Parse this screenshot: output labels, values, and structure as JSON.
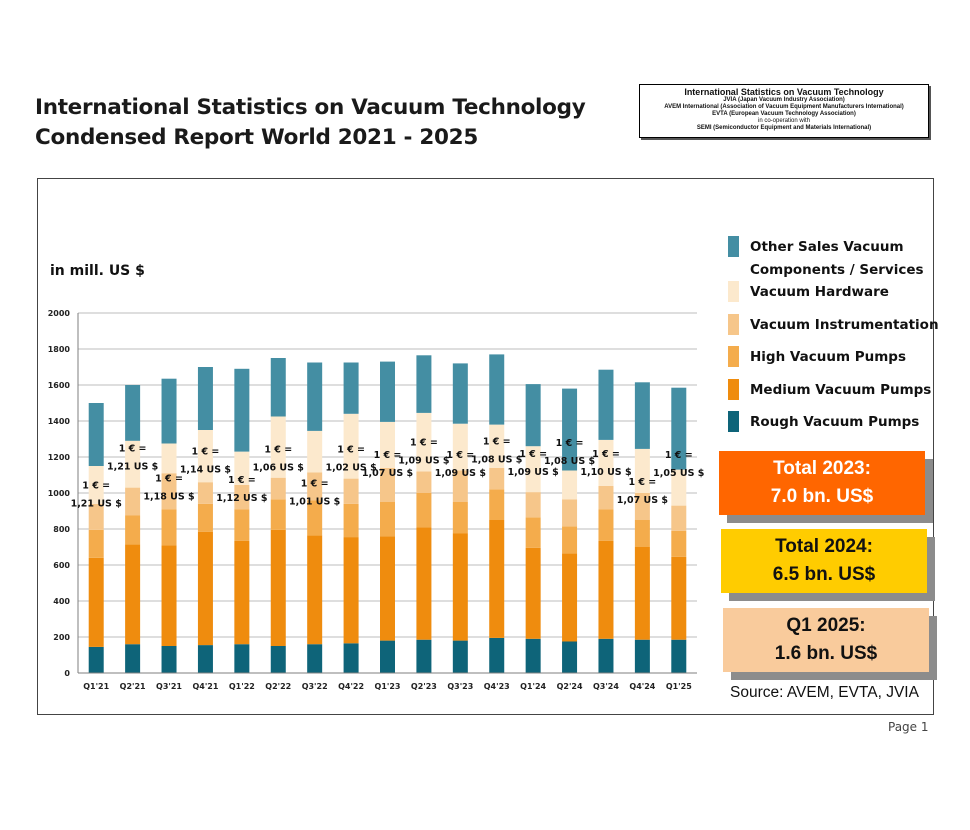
{
  "title_lines": [
    "International Statistics on Vacuum Technology",
    "Condensed Report World 2021 - 2025"
  ],
  "org_box": {
    "head": "International Statistics on Vacuum Technology",
    "lines": [
      "JVIA (Japan Vacuum Industry Association)",
      "AVEM International (Association of Vacuum Equipment Manufacturers International)",
      "EVTA (European Vacuum Technology Association)",
      "in co-operation with",
      "SEMI (Semiconductor Equipment and Materials International)"
    ]
  },
  "totals": [
    {
      "label": "Total 2023:",
      "value": "7.0 bn. US$",
      "color": "#ff6600",
      "text_color": "#ffffff"
    },
    {
      "label": "Total 2024:",
      "value": "6.5 bn. US$",
      "color": "#ffcc00",
      "text_color": "#111111"
    },
    {
      "label": "Q1 2025:",
      "value": "1.6 bn. US$",
      "color": "#f9cb9c",
      "text_color": "#111111"
    }
  ],
  "source": "Source: AVEM, EVTA, JVIA",
  "page_label": "Page 1",
  "chart_data": {
    "type": "bar",
    "stacked": true,
    "title": "",
    "ylabel": "in mill. US $",
    "xlabel": "",
    "ylim": [
      0,
      2000
    ],
    "yticks": [
      0,
      200,
      400,
      600,
      800,
      1000,
      1200,
      1400,
      1600,
      1800,
      2000
    ],
    "grid": true,
    "categories": [
      "Q1'21",
      "Q2'21",
      "Q3'21",
      "Q4'21",
      "Q1'22",
      "Q2'22",
      "Q3'22",
      "Q4'22",
      "Q1'23",
      "Q2'23",
      "Q3'23",
      "Q4'23",
      "Q1'24",
      "Q2'24",
      "Q3'24",
      "Q4'24",
      "Q1'25"
    ],
    "series": [
      {
        "name": "Rough Vacuum Pumps",
        "color": "#0e6479",
        "values": [
          145,
          160,
          150,
          155,
          160,
          150,
          160,
          165,
          180,
          185,
          180,
          195,
          190,
          175,
          190,
          185,
          185
        ]
      },
      {
        "name": "Medium Vacuum Pumps",
        "color": "#ef8c0e",
        "values": [
          495,
          555,
          560,
          630,
          575,
          645,
          605,
          590,
          580,
          625,
          595,
          655,
          505,
          490,
          545,
          515,
          460
        ]
      },
      {
        "name": "High Vacuum Pumps",
        "color": "#f4ac4c",
        "values": [
          155,
          160,
          200,
          155,
          175,
          170,
          195,
          185,
          190,
          190,
          175,
          170,
          170,
          150,
          175,
          150,
          145
        ]
      },
      {
        "name": "Vacuum Instrumentation",
        "color": "#f6c68a",
        "values": [
          145,
          155,
          200,
          120,
          135,
          120,
          155,
          140,
          190,
          120,
          175,
          120,
          140,
          150,
          130,
          150,
          140
        ]
      },
      {
        "name": "Vacuum Hardware",
        "color": "#fce9cd",
        "values": [
          210,
          260,
          165,
          290,
          185,
          340,
          230,
          360,
          255,
          325,
          260,
          240,
          255,
          160,
          255,
          245,
          200
        ]
      },
      {
        "name": "Other Sales Vacuum Components / Services",
        "legend_lines": [
          "Other Sales Vacuum",
          "Components / Services"
        ],
        "color": "#448ea3",
        "values": [
          350,
          310,
          360,
          350,
          460,
          325,
          380,
          285,
          335,
          320,
          335,
          390,
          345,
          455,
          390,
          370,
          455
        ]
      }
    ],
    "totals_per_quarter": [
      1500,
      1600,
      1635,
      1700,
      1690,
      1750,
      1725,
      1725,
      1730,
      1765,
      1720,
      1770,
      1605,
      1580,
      1685,
      1615,
      1585
    ],
    "exchange_rates": [
      {
        "top": "1 € =",
        "bottom": "1,21 US $"
      },
      {
        "top": "1 € =",
        "bottom": "1,21 US $"
      },
      {
        "top": "1 € =",
        "bottom": "1,18 US $"
      },
      {
        "top": "1 € =",
        "bottom": "1,14 US $"
      },
      {
        "top": "1 € =",
        "bottom": "1,12 US $"
      },
      {
        "top": "1 € =",
        "bottom": "1,06 US $"
      },
      {
        "top": "1 € =",
        "bottom": "1,01 US $"
      },
      {
        "top": "1 € =",
        "bottom": "1,02 US $"
      },
      {
        "top": "1 € =",
        "bottom": "1,07 US $"
      },
      {
        "top": "1 € =",
        "bottom": "1,09 US $"
      },
      {
        "top": "1 € =",
        "bottom": "1,09 US $"
      },
      {
        "top": "1 € =",
        "bottom": "1,08 US $"
      },
      {
        "top": "1 € =",
        "bottom": "1,09 US $"
      },
      {
        "top": "1 € =",
        "bottom": "1,08 US $"
      },
      {
        "top": "1 € =",
        "bottom": "1,10 US $"
      },
      {
        "top": "1 € =",
        "bottom": "1,07 US $"
      },
      {
        "top": "1 € =",
        "bottom": "1,05 US $"
      }
    ],
    "exchange_rate_anchor_values": [
      1025,
      1230,
      1065,
      1215,
      1055,
      1225,
      1035,
      1225,
      1195,
      1265,
      1195,
      1270,
      1200,
      1260,
      1200,
      1045,
      1195
    ],
    "legend_position": "right"
  }
}
